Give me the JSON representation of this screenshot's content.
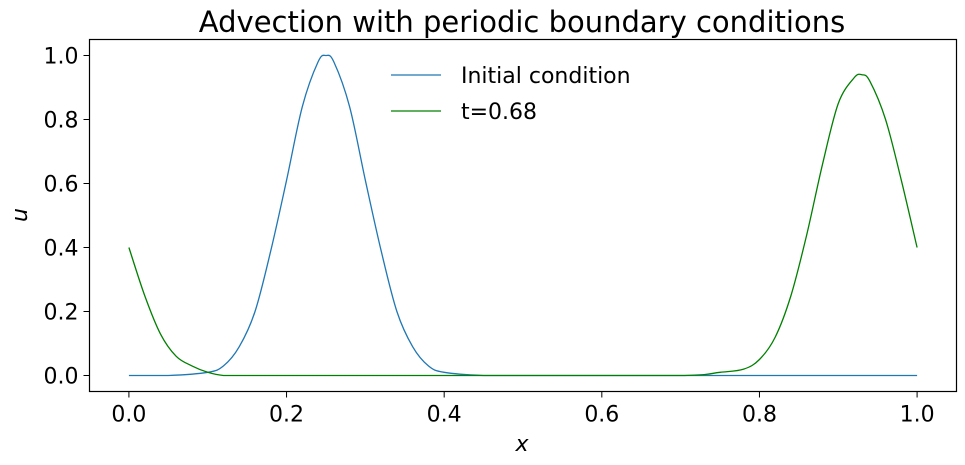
{
  "chart_data": {
    "type": "line",
    "title": "Advection with periodic boundary conditions",
    "xlabel": "x",
    "ylabel": "u",
    "xlim": [
      -0.05,
      1.05
    ],
    "ylim": [
      -0.05,
      1.05
    ],
    "x_ticks": [
      "0.0",
      "0.2",
      "0.4",
      "0.6",
      "0.8",
      "1.0"
    ],
    "y_ticks": [
      "0.0",
      "0.2",
      "0.4",
      "0.6",
      "0.8",
      "1.0"
    ],
    "grid": false,
    "legend_position": "upper center",
    "series": [
      {
        "name": "Initial condition",
        "color": "#1f77b4",
        "x": [
          0.0,
          0.05,
          0.1,
          0.12,
          0.14,
          0.16,
          0.18,
          0.2,
          0.22,
          0.24,
          0.25,
          0.26,
          0.28,
          0.3,
          0.32,
          0.34,
          0.36,
          0.38,
          0.4,
          0.45,
          0.5,
          0.6,
          0.7,
          0.8,
          0.9,
          1.0
        ],
        "y": [
          0.0,
          0.0,
          0.01,
          0.03,
          0.09,
          0.2,
          0.39,
          0.61,
          0.84,
          0.98,
          1.0,
          0.98,
          0.84,
          0.61,
          0.39,
          0.2,
          0.09,
          0.03,
          0.01,
          0.0,
          0.0,
          0.0,
          0.0,
          0.0,
          0.0,
          0.0
        ]
      },
      {
        "name": "t=0.68",
        "color": "#008000",
        "x": [
          0.0,
          0.02,
          0.04,
          0.06,
          0.08,
          0.1,
          0.12,
          0.15,
          0.2,
          0.3,
          0.5,
          0.7,
          0.75,
          0.78,
          0.8,
          0.82,
          0.84,
          0.86,
          0.88,
          0.9,
          0.92,
          0.93,
          0.94,
          0.96,
          0.98,
          1.0
        ],
        "y": [
          0.4,
          0.25,
          0.13,
          0.06,
          0.03,
          0.01,
          0.0,
          0.0,
          0.0,
          0.0,
          0.0,
          0.0,
          0.01,
          0.02,
          0.05,
          0.12,
          0.25,
          0.44,
          0.66,
          0.85,
          0.93,
          0.94,
          0.92,
          0.8,
          0.61,
          0.4
        ]
      }
    ]
  }
}
